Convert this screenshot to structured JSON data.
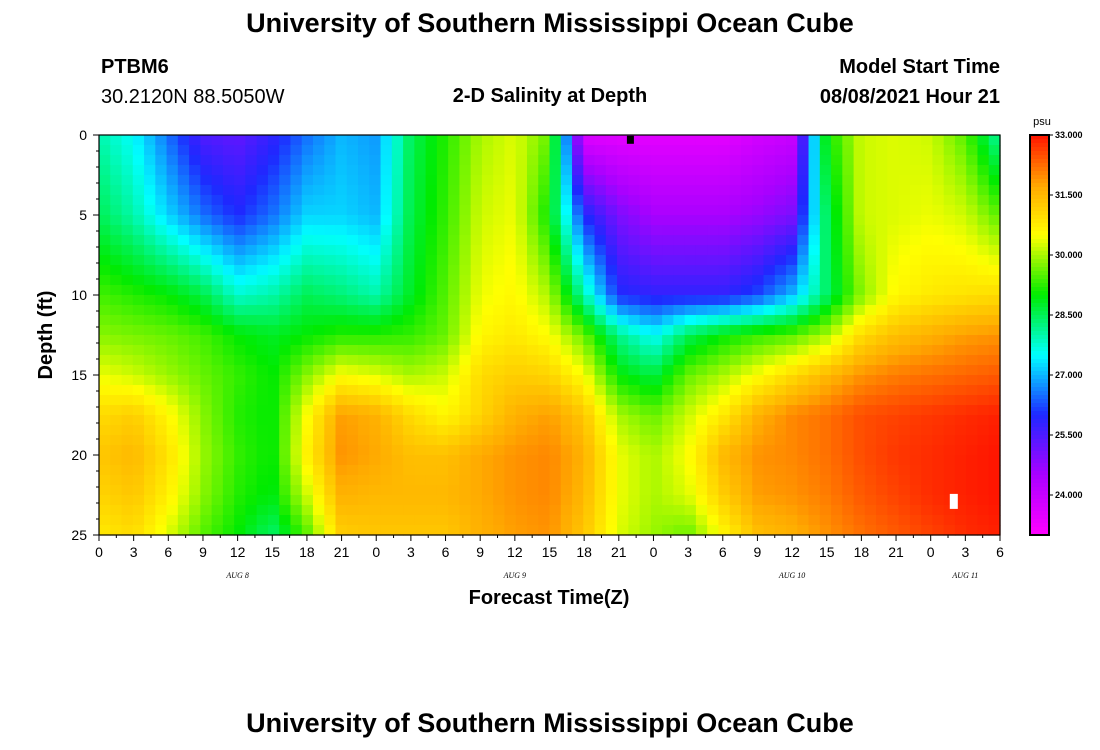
{
  "header": {
    "title_top": "University of Southern Mississippi Ocean Cube",
    "title_bottom": "University of Southern Mississippi Ocean Cube",
    "station": "PTBM6",
    "coords": "30.2120N  88.5050W",
    "plot_title": "2-D Salinity at Depth",
    "model_label": "Model Start Time",
    "model_time": "08/08/2021 Hour 21"
  },
  "chart_data": {
    "type": "heatmap",
    "title": "2-D Salinity at Depth",
    "xlabel": "Forecast Time(Z)",
    "ylabel": "Depth (ft)",
    "x_ticks": [
      "0",
      "3",
      "6",
      "9",
      "12",
      "15",
      "18",
      "21",
      "0",
      "3",
      "6",
      "9",
      "12",
      "15",
      "18",
      "21",
      "0",
      "3",
      "6",
      "9",
      "12",
      "15",
      "18",
      "21",
      "0",
      "3",
      "6"
    ],
    "x_range_hours": [
      0,
      78
    ],
    "day_labels": [
      {
        "label": "AUG 8",
        "hour": 12
      },
      {
        "label": "AUG 9",
        "hour": 36
      },
      {
        "label": "AUG 10",
        "hour": 60
      },
      {
        "label": "AUG 11",
        "hour": 75
      }
    ],
    "y_ticks": [
      "0",
      "5",
      "10",
      "15",
      "20",
      "25"
    ],
    "y_range_ft": [
      0,
      25
    ],
    "colorbar": {
      "unit": "psu",
      "min": 23.0,
      "max": 33.0,
      "labels": [
        "33.000",
        "31.500",
        "30.000",
        "28.500",
        "27.000",
        "25.500",
        "24.000"
      ],
      "label_values": [
        33.0,
        31.5,
        30.0,
        28.5,
        27.0,
        25.5,
        24.0
      ]
    },
    "depths_ft": [
      0,
      5,
      10,
      12.5,
      15,
      17.5,
      20,
      22.5,
      25
    ],
    "hours": [
      0,
      3,
      6,
      9,
      12,
      15,
      18,
      21,
      24,
      27,
      30,
      33,
      36,
      39,
      42,
      45,
      48,
      51,
      54,
      57,
      60,
      63,
      66,
      69,
      72,
      75,
      78
    ],
    "salinity_psu": [
      [
        28.0,
        27.5,
        26.5,
        25.5,
        25.3,
        25.8,
        26.5,
        27.0,
        26.8,
        28.5,
        29.2,
        30.0,
        30.3,
        29.6,
        23.6,
        23.5,
        23.5,
        23.5,
        23.5,
        23.8,
        24.0,
        29.0,
        30.2,
        30.3,
        30.2,
        29.5,
        28.0
      ],
      [
        28.5,
        28.0,
        27.2,
        26.5,
        26.0,
        26.5,
        27.2,
        27.2,
        27.0,
        28.6,
        29.3,
        30.2,
        30.4,
        29.0,
        26.0,
        25.0,
        24.5,
        24.5,
        24.5,
        24.7,
        25.0,
        28.5,
        30.2,
        30.3,
        30.4,
        30.2,
        29.5
      ],
      [
        29.4,
        29.2,
        29.0,
        28.6,
        27.8,
        28.0,
        28.5,
        28.3,
        28.0,
        28.8,
        29.5,
        30.4,
        30.6,
        30.0,
        28.0,
        26.0,
        25.8,
        25.8,
        25.8,
        26.2,
        27.0,
        28.4,
        29.8,
        30.6,
        30.8,
        30.9,
        31.0
      ],
      [
        29.8,
        29.7,
        29.6,
        29.4,
        29.0,
        28.8,
        29.0,
        29.2,
        29.2,
        29.3,
        29.6,
        30.6,
        30.8,
        30.5,
        29.6,
        28.2,
        27.5,
        28.5,
        29.0,
        29.3,
        29.5,
        30.0,
        31.0,
        31.4,
        31.6,
        31.8,
        31.9
      ],
      [
        30.4,
        30.2,
        29.9,
        29.6,
        29.3,
        29.0,
        29.8,
        30.5,
        30.3,
        30.0,
        30.2,
        31.0,
        31.2,
        31.1,
        30.5,
        29.0,
        28.6,
        29.6,
        30.0,
        30.5,
        31.0,
        31.5,
        31.9,
        32.1,
        32.2,
        32.3,
        32.4
      ],
      [
        31.0,
        31.2,
        30.6,
        29.8,
        29.2,
        29.0,
        30.5,
        31.8,
        31.6,
        31.0,
        30.6,
        31.1,
        31.6,
        31.8,
        31.3,
        30.0,
        29.6,
        30.2,
        30.8,
        31.6,
        32.0,
        32.2,
        32.5,
        32.6,
        32.7,
        32.8,
        32.9
      ],
      [
        31.3,
        31.5,
        30.9,
        29.9,
        29.3,
        29.0,
        30.7,
        31.9,
        31.7,
        31.4,
        31.4,
        31.7,
        31.9,
        32.0,
        31.6,
        30.4,
        30.0,
        30.5,
        31.5,
        31.9,
        32.0,
        32.2,
        32.5,
        32.7,
        32.8,
        32.9,
        33.0
      ],
      [
        31.1,
        31.3,
        30.7,
        29.8,
        29.2,
        28.9,
        30.2,
        31.6,
        31.5,
        31.5,
        31.5,
        31.7,
        31.9,
        32.0,
        31.5,
        30.4,
        30.0,
        30.3,
        31.2,
        31.8,
        31.9,
        32.1,
        32.4,
        32.6,
        32.8,
        32.9,
        33.0
      ],
      [
        30.8,
        31.0,
        30.3,
        29.5,
        29.0,
        28.4,
        29.5,
        31.2,
        31.3,
        31.3,
        31.3,
        31.6,
        31.8,
        31.9,
        31.3,
        30.3,
        29.9,
        29.6,
        30.6,
        31.4,
        31.6,
        31.9,
        32.2,
        32.4,
        32.6,
        32.8,
        32.9
      ]
    ],
    "markers": [
      {
        "hour": 46.0,
        "depth_ft": 0.3,
        "color": "#000000"
      },
      {
        "hour": 74.0,
        "depth_ft": 22.9,
        "color": "#ffffff"
      }
    ]
  }
}
